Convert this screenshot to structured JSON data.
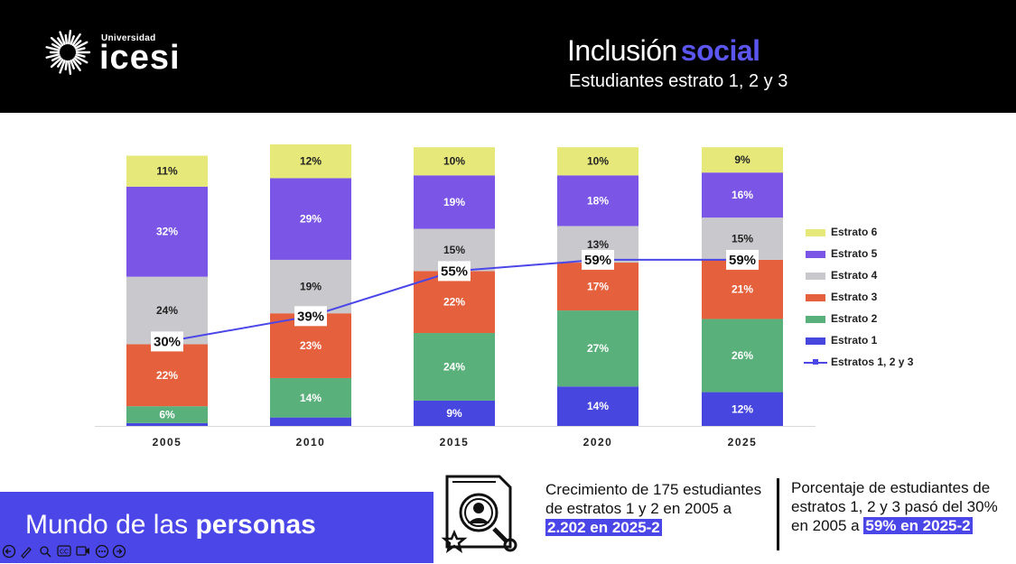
{
  "header": {
    "logo_small": "Universidad",
    "logo_brand": "icesi",
    "title_part1": "Inclusión",
    "title_part2": "social",
    "subtitle": "Estudiantes estrato 1, 2 y 3"
  },
  "colors": {
    "estrato1": "#4747e0",
    "estrato2": "#59b07a",
    "estrato3": "#e5613e",
    "estrato4": "#c9c9cd",
    "estrato5": "#7a55e6",
    "estrato6": "#e6e97a",
    "line": "#4b46e8",
    "accent": "#4b46e8"
  },
  "chart_data": {
    "type": "bar",
    "stacked": true,
    "categories": [
      "2005",
      "2010",
      "2015",
      "2020",
      "2025"
    ],
    "series": [
      {
        "name": "Estrato 1",
        "values": [
          1,
          3,
          9,
          14,
          12
        ],
        "labels": [
          "",
          "",
          "9%",
          "14%",
          "12%"
        ]
      },
      {
        "name": "Estrato 2",
        "values": [
          6,
          14,
          24,
          27,
          26
        ],
        "labels": [
          "6%",
          "14%",
          "24%",
          "27%",
          "26%"
        ]
      },
      {
        "name": "Estrato 3",
        "values": [
          22,
          23,
          22,
          17,
          21
        ],
        "labels": [
          "22%",
          "23%",
          "22%",
          "17%",
          "21%"
        ]
      },
      {
        "name": "Estrato 4",
        "values": [
          24,
          19,
          15,
          13,
          15
        ],
        "labels": [
          "24%",
          "19%",
          "15%",
          "13%",
          "15%"
        ]
      },
      {
        "name": "Estrato 5",
        "values": [
          32,
          29,
          19,
          18,
          16
        ],
        "labels": [
          "32%",
          "29%",
          "19%",
          "18%",
          "16%"
        ]
      },
      {
        "name": "Estrato 6",
        "values": [
          11,
          12,
          10,
          10,
          9
        ],
        "labels": [
          "11%",
          "12%",
          "10%",
          "10%",
          "9%"
        ]
      }
    ],
    "line_series": {
      "name": "Estratos 1, 2 y 3",
      "values": [
        30,
        39,
        55,
        59,
        59
      ],
      "labels": [
        "30%",
        "39%",
        "55%",
        "59%",
        "59%"
      ]
    },
    "legend": [
      "Estrato 6",
      "Estrato 5",
      "Estrato 4",
      "Estrato 3",
      "Estrato 2",
      "Estrato 1",
      "Estratos 1, 2 y 3"
    ],
    "legend_position": "right",
    "ylim": [
      0,
      100
    ],
    "grid": false
  },
  "footer": {
    "band_text_regular": "Mundo de las ",
    "band_text_bold": "personas",
    "player_icons": [
      "prev-icon",
      "pen-icon",
      "zoom-icon",
      "cc-icon",
      "camera-icon",
      "more-icon",
      "next-icon"
    ],
    "stat1_text": "Crecimiento de 175 estudiantes de estratos 1 y 2 en 2005 a",
    "stat1_highlight": "2.202 en 2025-2",
    "stat2_text": "Porcentaje de estudiantes de estratos 1, 2 y 3 pasó del 30% en 2005 a",
    "stat2_highlight": "59% en 2025-2"
  }
}
